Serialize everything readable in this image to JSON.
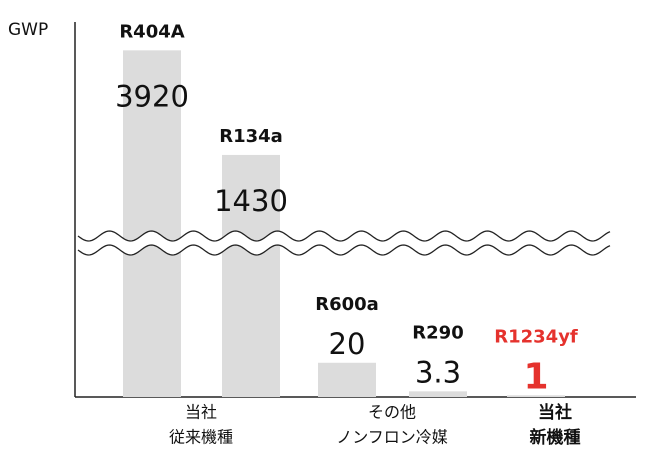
{
  "chart_data": {
    "type": "bar",
    "ylabel": "GWP",
    "categories": [
      "R404A",
      "R134a",
      "R600a",
      "R290",
      "R1234yf"
    ],
    "values": [
      3920,
      1430,
      20,
      3.3,
      1
    ],
    "color": "#dcdcdc",
    "highlight_color": "#e5322d",
    "highlight": 4,
    "ylim": [
      0,
      4000
    ],
    "ybreak": [
      90,
      1000
    ],
    "groups": [
      {
        "lines": [
          "当社",
          "従来機種"
        ],
        "bold": false
      },
      {
        "lines": [
          "その他",
          "ノンフロン冷媒"
        ],
        "bold": false
      },
      {
        "lines": [
          "当社",
          "新機種"
        ],
        "bold": true
      }
    ]
  }
}
